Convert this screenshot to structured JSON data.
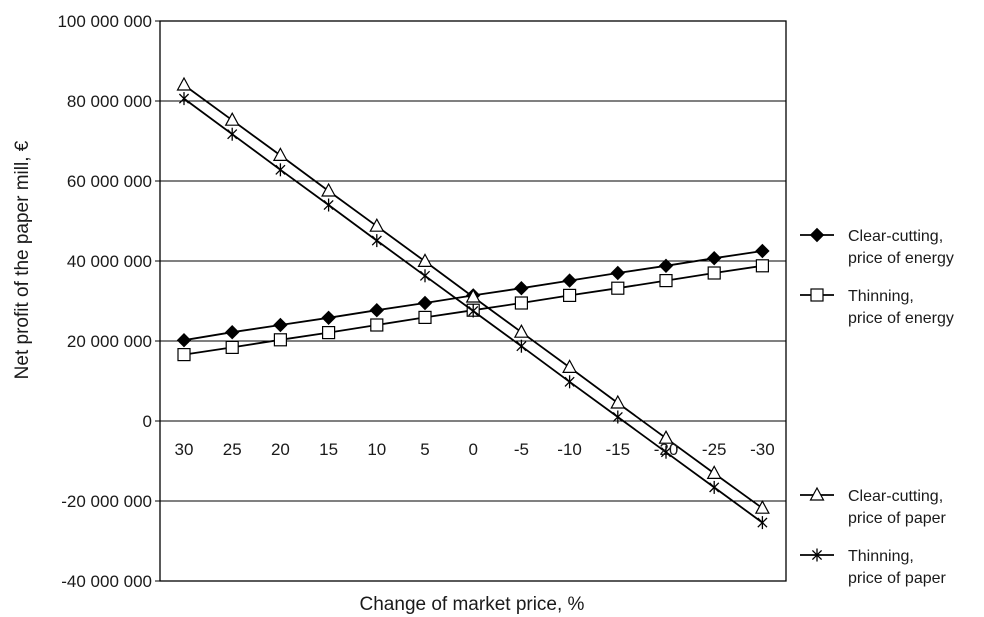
{
  "chart_data": {
    "type": "line",
    "title": "",
    "xlabel": "Change of market price, %",
    "ylabel": "Net profit of the paper mill, €",
    "categories": [
      "30",
      "25",
      "20",
      "15",
      "10",
      "5",
      "0",
      "-5",
      "-10",
      "-15",
      "-20",
      "-25",
      "-30"
    ],
    "ylim": [
      -40000000,
      100000000
    ],
    "yticks": [
      100000000,
      80000000,
      60000000,
      40000000,
      20000000,
      0,
      -20000000,
      -40000000
    ],
    "ytick_labels": [
      "100 000 000",
      "80 000 000",
      "60 000 000",
      "40 000 000",
      "20 000 000",
      "0",
      "-20 000 000",
      "-40 000 000"
    ],
    "grid": "horizontal",
    "legend_position": "right",
    "series": [
      {
        "name": "Clear-cutting, price of energy",
        "legend_lines": [
          "Clear-cutting,",
          "price of energy"
        ],
        "marker": "filled-diamond",
        "color": "#000000",
        "values": [
          20200000,
          22200000,
          24000000,
          25800000,
          27700000,
          29500000,
          31400000,
          33200000,
          35100000,
          37000000,
          38800000,
          40700000,
          42500000
        ]
      },
      {
        "name": "Thinning, price of energy",
        "legend_lines": [
          "Thinning,",
          "price of energy"
        ],
        "marker": "open-square",
        "color": "#000000",
        "values": [
          16600000,
          18400000,
          20300000,
          22100000,
          24000000,
          25900000,
          27700000,
          29500000,
          31400000,
          33200000,
          35100000,
          37000000,
          38800000
        ]
      },
      {
        "name": "Clear-cutting, price of paper",
        "legend_lines": [
          "Clear-cutting,",
          "price of paper"
        ],
        "marker": "open-triangle",
        "color": "#000000",
        "values": [
          84000000,
          75200000,
          66400000,
          57500000,
          48700000,
          39900000,
          31000000,
          22200000,
          13400000,
          4500000,
          -4300000,
          -13100000,
          -21800000
        ]
      },
      {
        "name": "Thinning, price of paper",
        "legend_lines": [
          "Thinning,",
          "price of paper"
        ],
        "marker": "star",
        "color": "#000000",
        "values": [
          80600000,
          71700000,
          62800000,
          54000000,
          45100000,
          36300000,
          27500000,
          18700000,
          9800000,
          1000000,
          -7800000,
          -16600000,
          -25400000
        ]
      }
    ]
  }
}
